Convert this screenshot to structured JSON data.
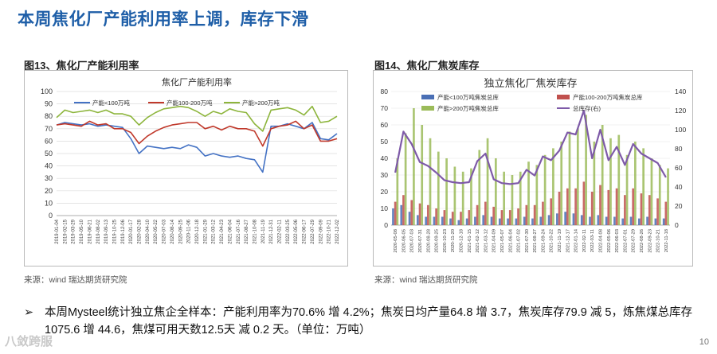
{
  "slide": {
    "title": "本周焦化厂产能利用率上调，库存下滑",
    "bullet": "本周Mysteel统计独立焦企全样本：产能利用率为70.6% 增 4.2%；焦炭日均产量64.8 增 3.7，焦炭库存79.9 减 5，炼焦煤总库存1075.6 增 44.6，焦煤可用天数12.5天 减 0.2 天。（单位：万吨）",
    "bullet_symbol": "➢",
    "watermark": "八敛跨服",
    "page_number": "10"
  },
  "figures": [
    {
      "caption": "图13、焦化厂产能利用率",
      "source": "来源：wind   瑞达期货研究院"
    },
    {
      "caption": "图14、焦化厂焦炭库存",
      "source": "来源：wind   瑞达期货研究院"
    }
  ],
  "chart_data": [
    {
      "type": "line",
      "title": "焦化厂产能利用率",
      "ylim": [
        0,
        100
      ],
      "yticks": [
        "0",
        "10",
        "20",
        "30",
        "40",
        "50",
        "60",
        "70",
        "80",
        "90",
        "100"
      ],
      "x": [
        "2019-01-04",
        "2019-02-15",
        "2019-03-29",
        "2019-05-10",
        "2019-06-21",
        "2019-08-02",
        "2019-09-13",
        "2019-10-25",
        "2019-12-06",
        "2020-01-17",
        "2020-02-28",
        "2020-04-10",
        "2020-05-22",
        "2020-07-03",
        "2020-08-14",
        "2020-09-25",
        "2020-11-06",
        "2020-12-18",
        "2021-01-29",
        "2021-03-12",
        "2021-04-23",
        "2021-06-04",
        "2021-07-16",
        "2021-08-27",
        "2021-10-08",
        "2021-11-19",
        "2021-12-31",
        "2022-02-11",
        "2022-03-25",
        "2022-05-06",
        "2022-06-17",
        "2022-07-29",
        "2022-09-09",
        "2022-10-21",
        "2022-12-02"
      ],
      "legend_position": "top",
      "grid": true,
      "series": [
        {
          "name": "产能<100万吨",
          "color": "#4472c4",
          "values": [
            73,
            75,
            74,
            73,
            74,
            72,
            73,
            72,
            71,
            62,
            50,
            56,
            55,
            54,
            55,
            54,
            57,
            55,
            48,
            50,
            48,
            47,
            48,
            46,
            45,
            35,
            72,
            72,
            74,
            72,
            70,
            75,
            62,
            61,
            66
          ]
        },
        {
          "name": "产能100-200万吨",
          "color": "#c0392b",
          "values": [
            73,
            74,
            73,
            72,
            76,
            73,
            74,
            70,
            70,
            67,
            58,
            64,
            68,
            71,
            73,
            74,
            75,
            75,
            70,
            72,
            69,
            72,
            70,
            70,
            68,
            56,
            70,
            72,
            73,
            76,
            70,
            73,
            60,
            60,
            62
          ]
        },
        {
          "name": "产能>200万吨",
          "color": "#8db53c",
          "values": [
            79,
            85,
            83,
            84,
            85,
            83,
            85,
            82,
            82,
            80,
            73,
            79,
            83,
            86,
            87,
            88,
            87,
            84,
            80,
            84,
            82,
            86,
            84,
            83,
            74,
            68,
            85,
            86,
            87,
            85,
            81,
            88,
            75,
            76,
            80
          ]
        }
      ]
    },
    {
      "type": "bar",
      "title": "独立焦化厂焦炭库存",
      "ylim": [
        0,
        80
      ],
      "y2lim": [
        0,
        140
      ],
      "yticks": [
        "0",
        "10",
        "20",
        "30",
        "40",
        "50",
        "60",
        "70",
        "80"
      ],
      "y2ticks": [
        "0",
        "20",
        "40",
        "60",
        "80",
        "100",
        "120",
        "140"
      ],
      "x": [
        "2020-05-08",
        "2020-06-05",
        "2020-07-03",
        "2020-07-31",
        "2020-08-28",
        "2020-09-25",
        "2020-10-23",
        "2020-11-20",
        "2020-12-18",
        "2021-01-15",
        "2021-02-12",
        "2021-03-12",
        "2021-04-09",
        "2021-05-07",
        "2021-06-04",
        "2021-07-02",
        "2021-07-30",
        "2021-08-27",
        "2021-09-24",
        "2021-10-22",
        "2021-11-19",
        "2021-12-17",
        "2022-01-14",
        "2022-02-11",
        "2022-03-11",
        "2022-04-08",
        "2022-05-06",
        "2022-06-03",
        "2022-07-01",
        "2022-07-29",
        "2022-08-26",
        "2022-09-23",
        "2022-10-21",
        "2022-11-18"
      ],
      "legend_position": "top",
      "grid": true,
      "series": [
        {
          "name": "产能<100万吨焦炭总库",
          "type": "bar",
          "color": "#4a6fb5",
          "values": [
            10,
            12,
            8,
            6,
            5,
            5,
            5,
            4,
            3,
            4,
            5,
            6,
            5,
            4,
            4,
            4,
            5,
            4,
            5,
            6,
            7,
            8,
            7,
            6,
            5,
            6,
            5,
            5,
            4,
            5,
            4,
            5,
            4,
            4
          ]
        },
        {
          "name": "产能100-200万吨焦炭总库",
          "type": "bar",
          "color": "#c0504d",
          "values": [
            14,
            18,
            15,
            13,
            12,
            10,
            9,
            8,
            8,
            9,
            12,
            14,
            11,
            9,
            9,
            10,
            12,
            12,
            14,
            16,
            20,
            22,
            22,
            26,
            20,
            24,
            21,
            22,
            18,
            22,
            19,
            18,
            16,
            14
          ]
        },
        {
          "name": "产能>200万吨焦炭总库",
          "type": "bar",
          "color": "#9bbb59",
          "values": [
            40,
            55,
            70,
            60,
            52,
            44,
            40,
            35,
            32,
            34,
            45,
            52,
            40,
            32,
            30,
            32,
            38,
            36,
            42,
            46,
            50,
            56,
            58,
            66,
            50,
            60,
            52,
            54,
            42,
            50,
            46,
            40,
            36,
            34
          ]
        },
        {
          "name": "总库存(右)",
          "type": "line",
          "color": "#7e5aa8",
          "values": [
            55,
            98,
            85,
            66,
            62,
            55,
            47,
            45,
            44,
            45,
            67,
            75,
            48,
            44,
            43,
            44,
            58,
            52,
            72,
            68,
            78,
            97,
            95,
            120,
            70,
            100,
            68,
            82,
            63,
            85,
            75,
            70,
            65,
            50
          ]
        }
      ]
    }
  ]
}
